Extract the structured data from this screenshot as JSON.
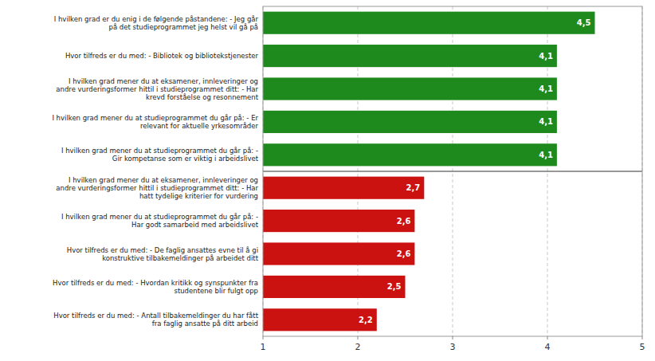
{
  "chart_data": {
    "type": "bar",
    "orientation": "horizontal",
    "categories": [
      "I hvilken grad er du enig i de følgende påstandene: - Jeg går\npå det studieprogrammet jeg helst vil gå på",
      "Hvor tilfreds er du med: - Bibliotek og bibliotekstjenester",
      "I hvilken grad mener du at eksamener, innleveringer og\nandre vurderingsformer hittil i studieprogrammet ditt: - Har\nkrevd forståelse og resonnement",
      "I hvilken grad mener du at studieprogrammet du går på: - Er\nrelevant for aktuelle yrkesområder",
      "I hvilken grad mener du at studieprogrammet du går på: -\nGir kompetanse som er viktig i arbeidslivet",
      "I hvilken grad mener du at eksamener, innleveringer og\nandre vurderingsformer hittil i studieprogrammet ditt: - Har\nhatt tydelige kriterier for vurdering",
      "I hvilken grad mener du at studieprogrammet du går på: -\nHar godt samarbeid med arbeidslivet",
      "Hvor tilfreds er du med: - De faglig ansattes evne til å gi\nkonstruktive tilbakemeldinger på arbeidet ditt",
      "Hvor tilfreds er du med: - Hvordan kritikk og synspunkter fra\nstudentene blir fulgt opp",
      "Hvor tilfreds er du med: - Antall tilbakemeldinger du har fått\nfra faglig ansatte på ditt arbeid"
    ],
    "values": [
      4.5,
      4.1,
      4.1,
      4.1,
      4.1,
      2.7,
      2.6,
      2.6,
      2.5,
      2.2
    ],
    "value_labels": [
      "4,5",
      "4,1",
      "4,1",
      "4,1",
      "4,1",
      "2,7",
      "2,6",
      "2,6",
      "2,5",
      "2,2"
    ],
    "colors": [
      "#1e8a1e",
      "#1e8a1e",
      "#1e8a1e",
      "#1e8a1e",
      "#1e8a1e",
      "#cc1111",
      "#cc1111",
      "#cc1111",
      "#cc1111",
      "#cc1111"
    ],
    "xlim": [
      1,
      5
    ],
    "xticks": [
      1,
      2,
      3,
      4,
      5
    ],
    "grid": true,
    "data_labels": true
  }
}
